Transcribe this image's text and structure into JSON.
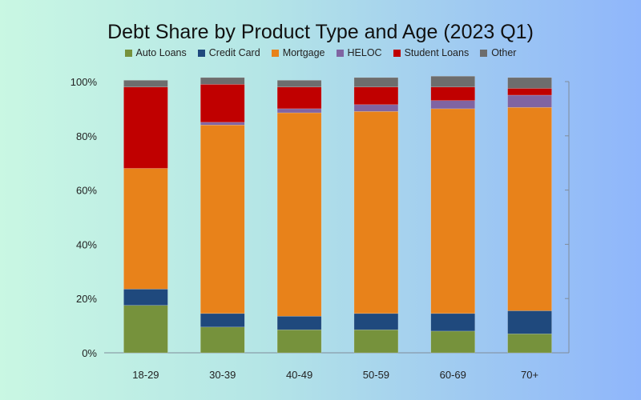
{
  "chart_data": {
    "type": "bar",
    "stacked": true,
    "title": "Debt Share by Product Type and Age (2023 Q1)",
    "xlabel": "",
    "ylabel": "",
    "ylim": [
      0,
      100
    ],
    "yticks": [
      "0%",
      "20%",
      "40%",
      "60%",
      "80%",
      "100%"
    ],
    "categories": [
      "18-29",
      "30-39",
      "40-49",
      "50-59",
      "60-69",
      "70+"
    ],
    "legend_position": "top",
    "grid": false,
    "series": [
      {
        "name": "Auto Loans",
        "color": "#76923c",
        "values": [
          17.5,
          9.5,
          8.5,
          8.5,
          8.0,
          7.0
        ]
      },
      {
        "name": "Credit Card",
        "color": "#1f497d",
        "values": [
          6.0,
          5.0,
          5.0,
          6.0,
          6.5,
          8.5
        ]
      },
      {
        "name": "Mortgage",
        "color": "#e8821a",
        "values": [
          44.5,
          69.5,
          75.0,
          74.5,
          75.5,
          75.0
        ]
      },
      {
        "name": "HELOC",
        "color": "#8064a2",
        "values": [
          0.0,
          1.0,
          1.5,
          2.5,
          3.0,
          4.5
        ]
      },
      {
        "name": "Student Loans",
        "color": "#c00000",
        "values": [
          30.0,
          14.0,
          8.0,
          6.5,
          5.0,
          2.5
        ]
      },
      {
        "name": "Other",
        "color": "#6d6d6d",
        "values": [
          2.5,
          2.5,
          2.5,
          3.5,
          4.0,
          4.0
        ]
      }
    ]
  }
}
